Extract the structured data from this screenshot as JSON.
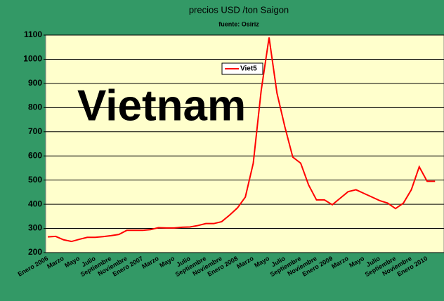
{
  "chart_data": {
    "type": "line",
    "title": "precios USD /ton Saigon",
    "subtitle": "fuente: Osiriz",
    "annotation": "Vietnam",
    "categories": [
      "Enero 2006",
      null,
      "Marzo",
      null,
      "Mayo",
      null,
      "Julio",
      null,
      "Septiembre",
      null,
      "Noviembre",
      null,
      "Enero 2007",
      null,
      "Marzo",
      null,
      "Mayo",
      null,
      "Julio",
      null,
      "Septiembre",
      null,
      "Noviembre",
      null,
      "Enero 2008",
      null,
      "Marzo",
      null,
      "Mayo",
      null,
      "Julio",
      null,
      "Septiembre",
      null,
      "Noviembre",
      null,
      "Enero 2009",
      null,
      "Marzo",
      null,
      "Mayo",
      null,
      "Julio",
      null,
      "Septiembre",
      null,
      "Noviembre",
      null,
      "Enero 2010",
      null
    ],
    "series": [
      {
        "name": "Viet5",
        "color": "#ff0000",
        "values": [
          265,
          267,
          253,
          246,
          255,
          263,
          263,
          266,
          270,
          275,
          292,
          292,
          292,
          295,
          303,
          302,
          302,
          305,
          306,
          312,
          320,
          320,
          328,
          355,
          385,
          430,
          570,
          870,
          1090,
          860,
          720,
          595,
          570,
          480,
          418,
          418,
          398,
          425,
          452,
          460,
          445,
          430,
          415,
          405,
          382,
          405,
          460,
          555,
          495,
          495
        ]
      }
    ],
    "ylim": [
      200,
      1100
    ],
    "yticks": [
      200,
      300,
      400,
      500,
      600,
      700,
      800,
      900,
      1000,
      1100
    ],
    "grid": true,
    "background": "#339966",
    "plot_background": "#ffffcc"
  }
}
